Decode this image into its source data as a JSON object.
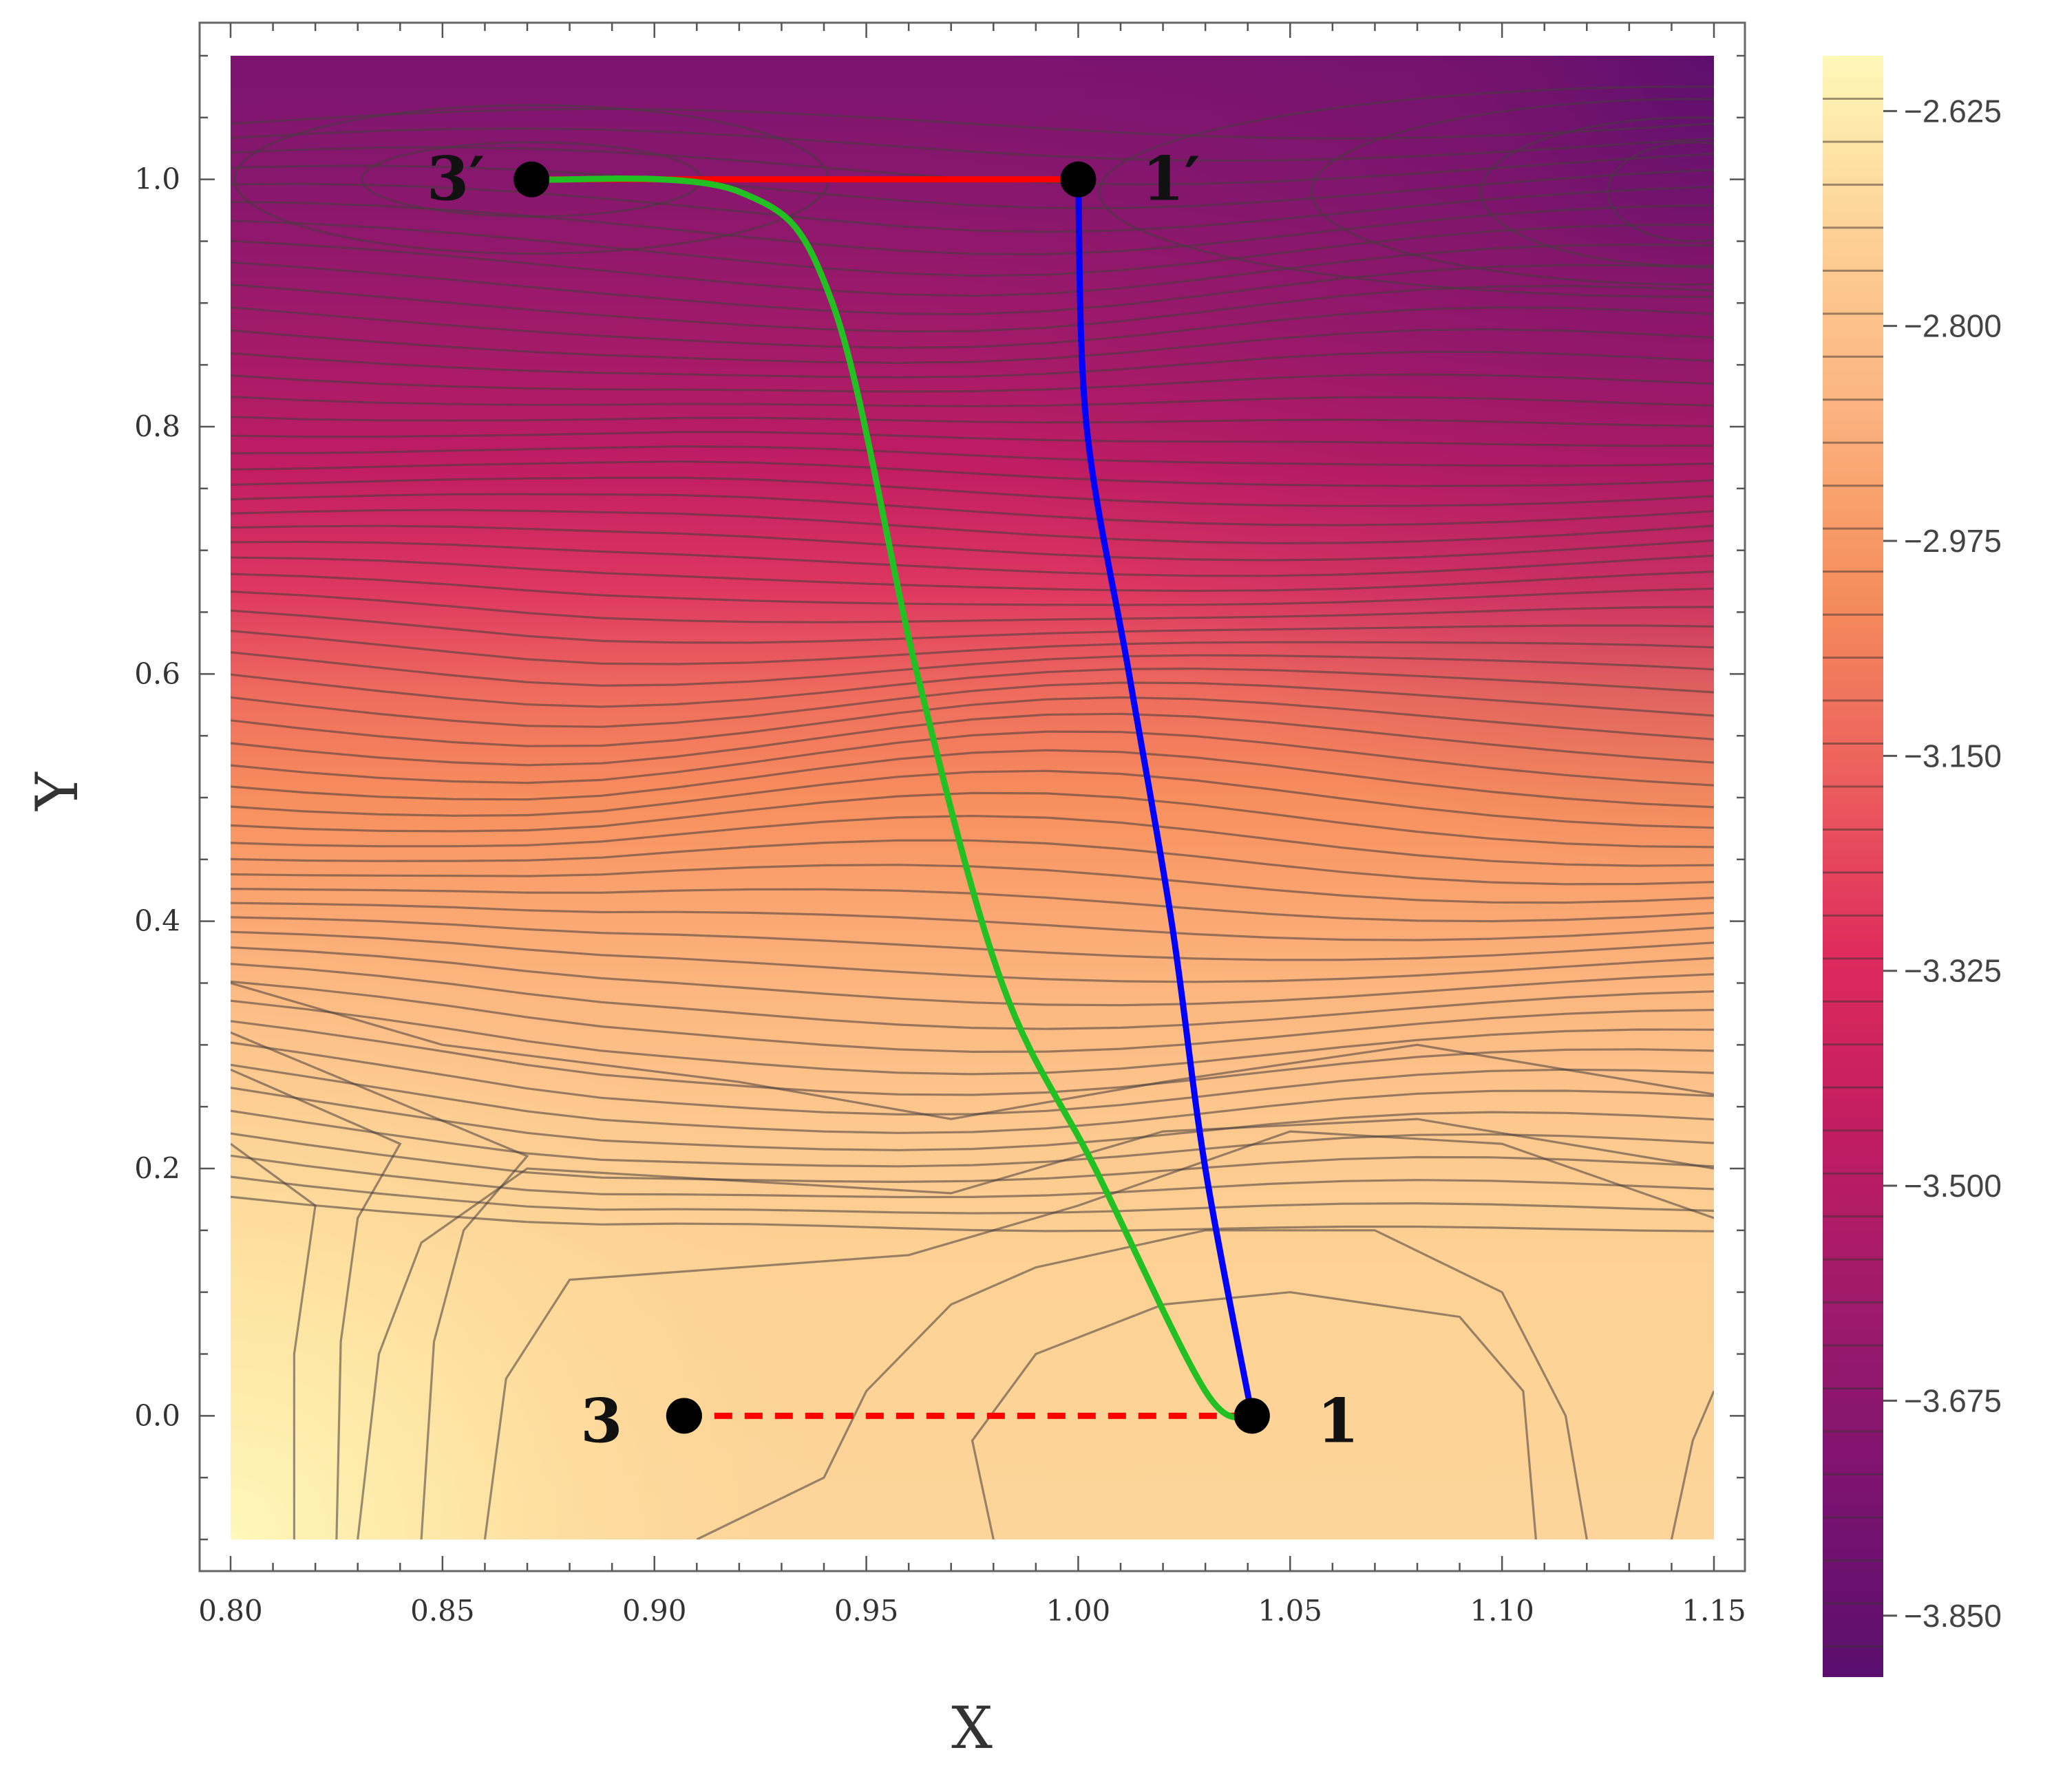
{
  "chart_data": {
    "type": "heatmap",
    "subtype": "contour",
    "xlabel": "X",
    "ylabel": "Y",
    "xlim": [
      0.8,
      1.15
    ],
    "ylim": [
      -0.1,
      1.1
    ],
    "xticks": [
      "0.80",
      "0.85",
      "0.90",
      "0.95",
      "1.00",
      "1.05",
      "1.10",
      "1.15"
    ],
    "yticks": [
      "0.0",
      "0.2",
      "0.4",
      "0.6",
      "0.8",
      "1.0"
    ],
    "colorbar": {
      "min": -3.9,
      "max": -2.58,
      "ticks": [
        "-2.625",
        "-2.800",
        "-2.975",
        "-3.150",
        "-3.325",
        "-3.500",
        "-3.675",
        "-3.850"
      ],
      "colormap": "magma-like",
      "colors": [
        "#5a0f6e",
        "#7a1270",
        "#9c1a6c",
        "#c01c62",
        "#de2a5c",
        "#ec5f5d",
        "#f58d5c",
        "#fbb27e",
        "#fdd096",
        "#fef8b8"
      ]
    },
    "points": [
      {
        "label": "3′",
        "x": 0.871,
        "y": 1.0
      },
      {
        "label": "1′",
        "x": 1.0,
        "y": 1.0
      },
      {
        "label": "3",
        "x": 0.907,
        "y": 0.0
      },
      {
        "label": "1",
        "x": 1.041,
        "y": 0.0
      }
    ],
    "paths": [
      {
        "color": "#ff0000",
        "style": "solid",
        "points": [
          [
            0.871,
            1.0
          ],
          [
            1.0,
            1.0
          ]
        ]
      },
      {
        "color": "#ff0000",
        "style": "dashed",
        "points": [
          [
            0.907,
            0.0
          ],
          [
            1.041,
            0.0
          ]
        ]
      },
      {
        "color": "#0000ff",
        "style": "solid",
        "points": [
          [
            1.0,
            1.0
          ],
          [
            1.002,
            0.8
          ],
          [
            1.012,
            0.6
          ],
          [
            1.022,
            0.4
          ],
          [
            1.03,
            0.2
          ],
          [
            1.041,
            0.0
          ]
        ]
      },
      {
        "color": "#22c022",
        "style": "solid",
        "points": [
          [
            0.871,
            1.0
          ],
          [
            0.92,
            0.99
          ],
          [
            0.942,
            0.9
          ],
          [
            0.962,
            0.6
          ],
          [
            0.982,
            0.35
          ],
          [
            1.004,
            0.2
          ],
          [
            1.03,
            0.02
          ],
          [
            1.041,
            0.0
          ]
        ]
      }
    ]
  }
}
